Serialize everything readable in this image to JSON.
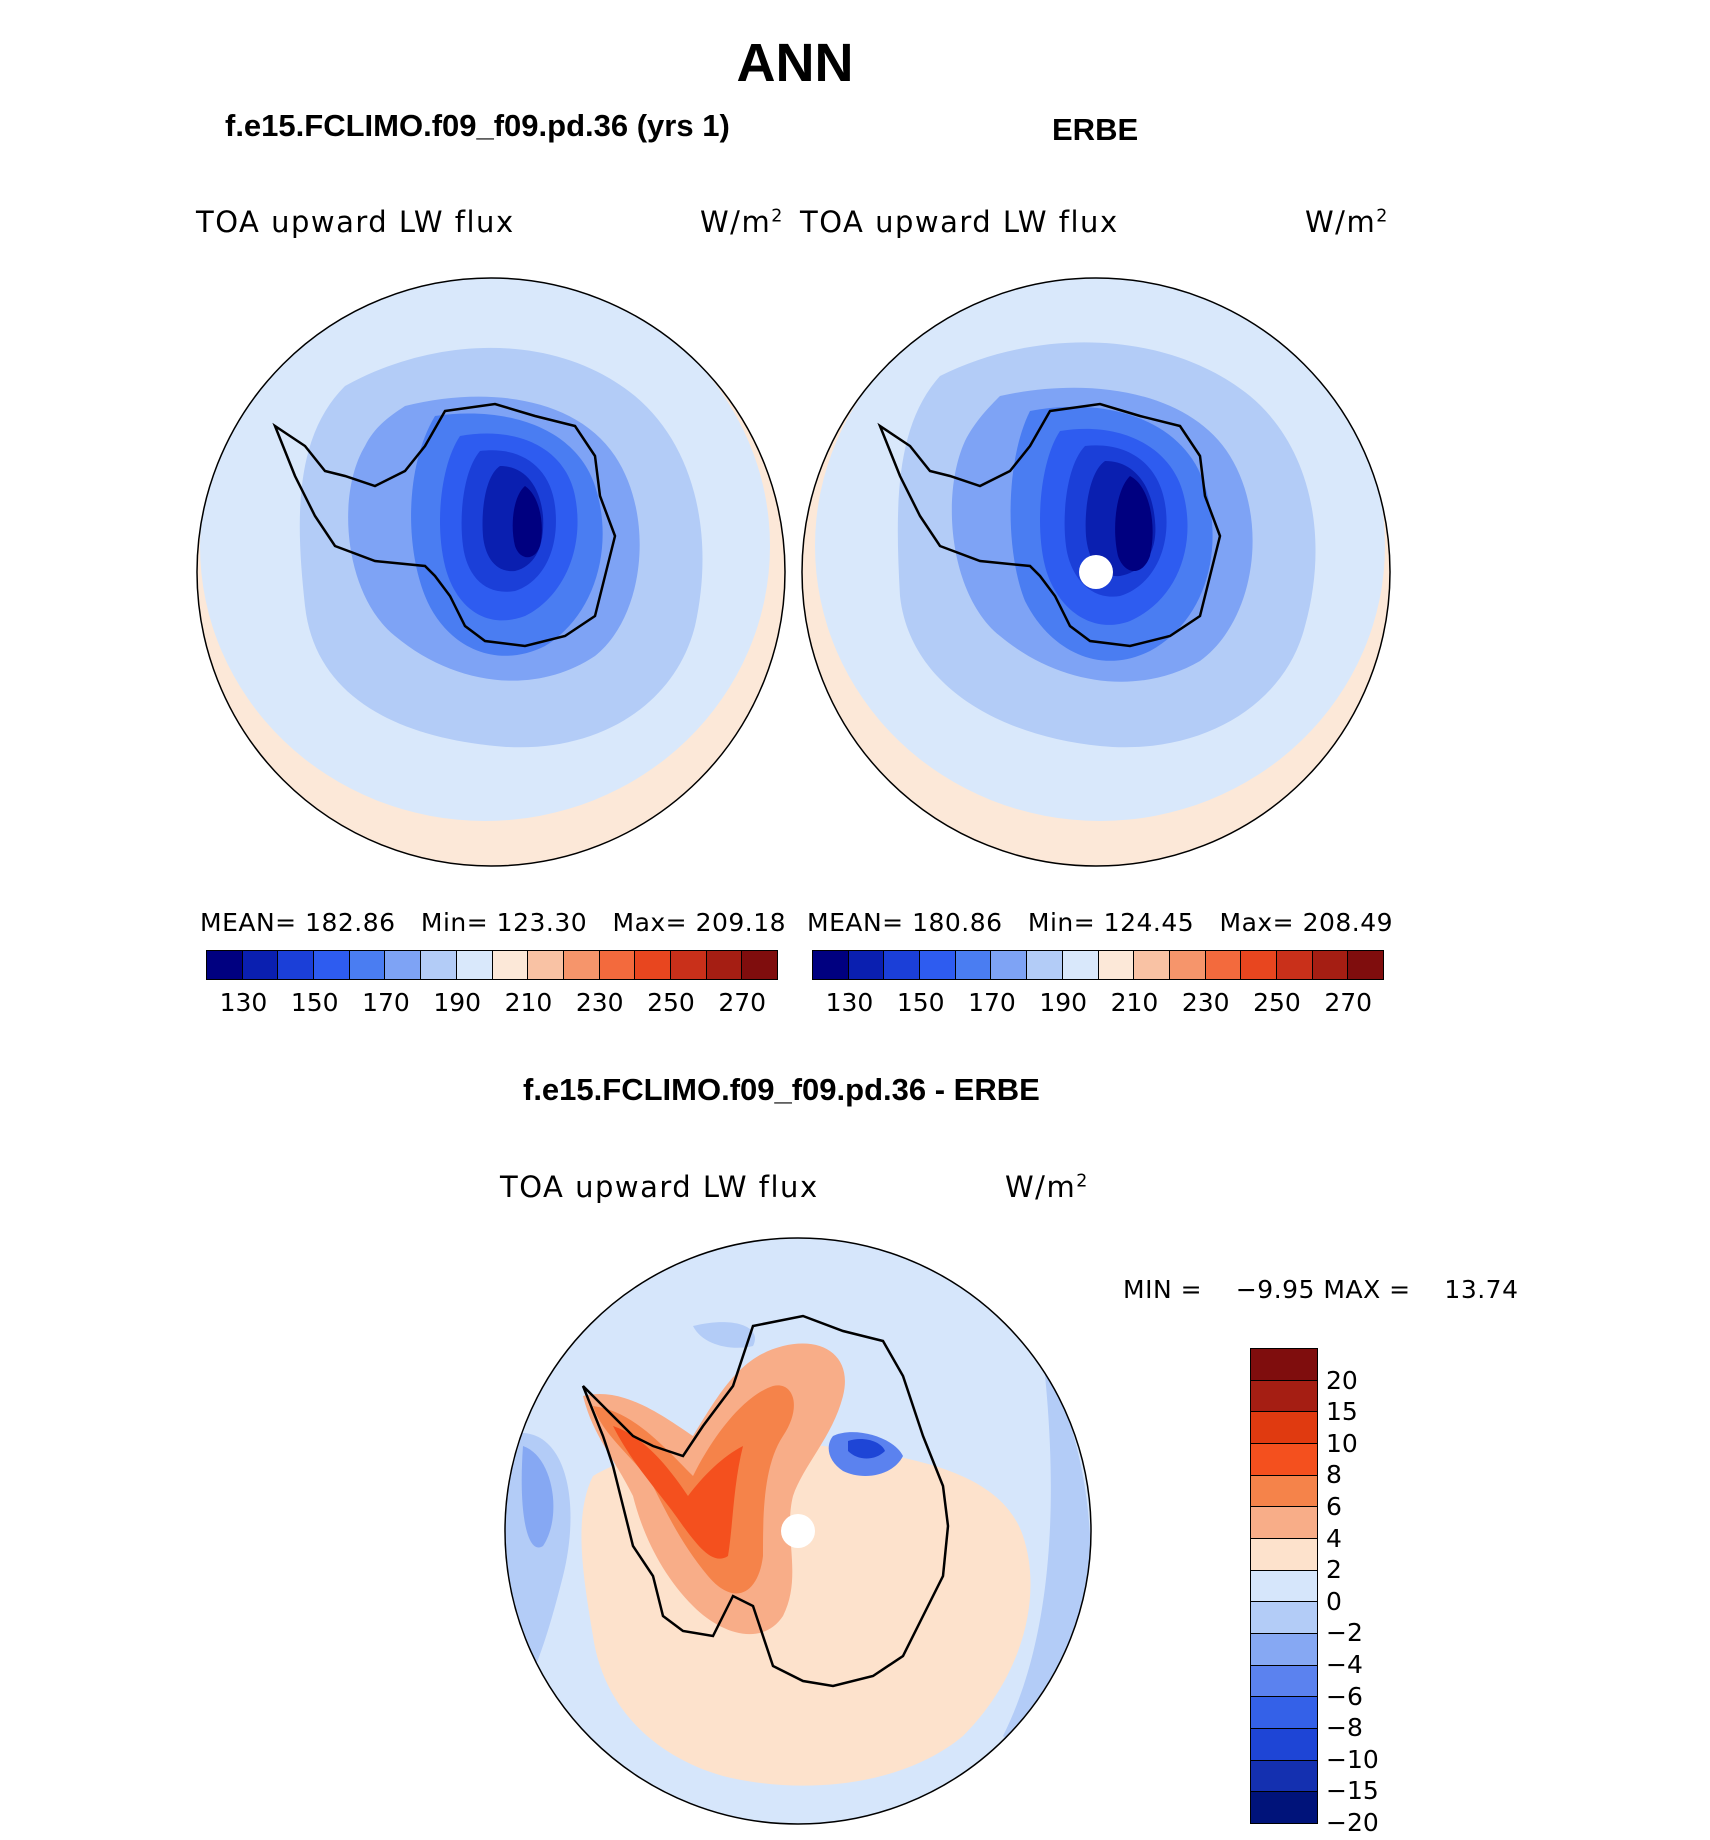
{
  "figure": {
    "title": "ANN",
    "difference_title": "f.e15.FCLIMO.f09_f09.pd.36 - ERBE"
  },
  "panels": [
    {
      "title": "f.e15.FCLIMO.f09_f09.pd.36 (yrs 1)",
      "variable": "TOA upward LW flux",
      "units": "W/m",
      "units_sup": "2",
      "mean_label": "MEAN=",
      "mean": "182.86",
      "min_label": "Min=",
      "min": "123.30",
      "max_label": "Max=",
      "max": "209.18"
    },
    {
      "title": "ERBE",
      "variable": "TOA upward LW flux",
      "units": "W/m",
      "units_sup": "2",
      "mean_label": "MEAN=",
      "mean": "180.86",
      "min_label": "Min=",
      "min": "124.45",
      "max_label": "Max=",
      "max": "208.49"
    }
  ],
  "diff_panel": {
    "variable": "TOA upward LW flux",
    "units": "W/m",
    "units_sup": "2",
    "min_label": "MIN =",
    "min": "−9.95",
    "max_label": "MAX =",
    "max": "13.74"
  },
  "colorbar_abs": {
    "colors": [
      "#000080",
      "#0a1fb0",
      "#1b3fd8",
      "#2e5cf0",
      "#4a7df2",
      "#7ea3f5",
      "#b3ccf7",
      "#d9e8fb",
      "#fce8d8",
      "#f9c2a4",
      "#f6956b",
      "#f36a3d",
      "#e8461f",
      "#c9301a",
      "#a51e13",
      "#7f0d0d"
    ],
    "ticks": [
      "130",
      "150",
      "170",
      "190",
      "210",
      "230",
      "250",
      "270"
    ]
  },
  "colorbar_diff": {
    "colors": [
      "#7f0d0d",
      "#a51e13",
      "#e03a10",
      "#f4501e",
      "#f5834a",
      "#f8ad88",
      "#fde2cc",
      "#d6e6fb",
      "#b3ccf7",
      "#86a8f3",
      "#5b82ef",
      "#3461e8",
      "#1e45d6",
      "#1430b0",
      "#00137a"
    ],
    "ticks": [
      "20",
      "15",
      "10",
      "8",
      "6",
      "4",
      "2",
      "0",
      "−2",
      "−4",
      "−6",
      "−8",
      "−10",
      "−15",
      "−20"
    ]
  }
}
